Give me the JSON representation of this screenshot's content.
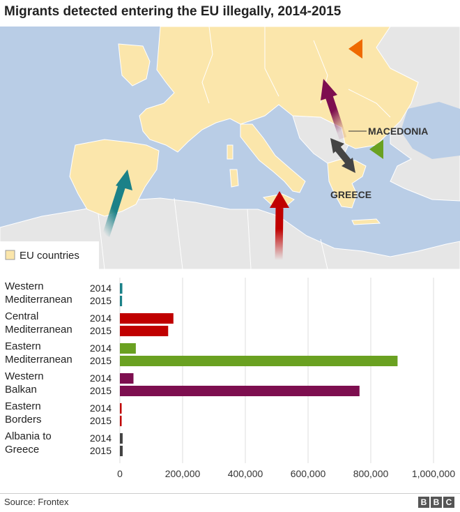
{
  "header": {
    "title": "Migrants detected entering the EU illegally, 2014-2015"
  },
  "map": {
    "legend_label": "EU countries",
    "labels": {
      "macedonia": "MACEDONIA",
      "greece": "GREECE"
    },
    "colors": {
      "sea": "#b9cde6",
      "eu": "#fbe6ab",
      "non_eu": "#e6e6e6",
      "border": "#ffffff"
    }
  },
  "chart_data": {
    "type": "bar",
    "orientation": "horizontal",
    "groups": [
      {
        "name": [
          "Western",
          "Mediterranean"
        ],
        "color": "#1b8188",
        "values": {
          "2014": 7840,
          "2015": 7004
        }
      },
      {
        "name": [
          "Central",
          "Mediterranean"
        ],
        "color": "#c00000",
        "values": {
          "2014": 170664,
          "2015": 153946
        }
      },
      {
        "name": [
          "Eastern",
          "Mediterranean"
        ],
        "color": "#6aa121",
        "values": {
          "2014": 50834,
          "2015": 885386
        }
      },
      {
        "name": [
          "Western",
          "Balkan"
        ],
        "color": "#7d0e4f",
        "values": {
          "2014": 43357,
          "2015": 764038
        }
      },
      {
        "name": [
          "Eastern",
          "Borders"
        ],
        "color": "#c00000",
        "values": {
          "2014": 1275,
          "2015": 1927
        }
      },
      {
        "name": [
          "Albania to",
          "Greece"
        ],
        "color": "#444444",
        "values": {
          "2014": 8841,
          "2015": 8932
        }
      }
    ],
    "years": [
      "2014",
      "2015"
    ],
    "xlim": [
      0,
      1000000
    ],
    "xticks": [
      0,
      200000,
      400000,
      600000,
      800000,
      1000000
    ],
    "xtick_labels": [
      "0",
      "200,000",
      "400,000",
      "600,000",
      "800,000",
      "1,000,000"
    ],
    "grid": "vertical"
  },
  "footer": {
    "source": "Source: Frontex",
    "logo_letters": [
      "B",
      "B",
      "C"
    ]
  }
}
